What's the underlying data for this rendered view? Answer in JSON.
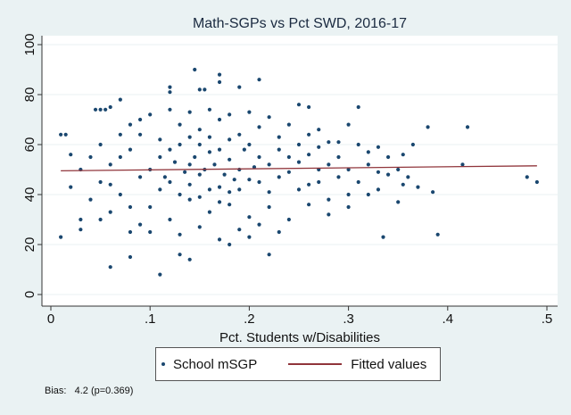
{
  "chart_data": {
    "type": "scatter",
    "title": "Math-SGPs vs Pct SWD, 2016-17",
    "xlabel": "Pct. Students w/Disabilities",
    "ylabel": "",
    "xlim": [
      0,
      0.5
    ],
    "ylim": [
      0,
      100
    ],
    "xticks": [
      0,
      0.1,
      0.2,
      0.3,
      0.4,
      0.5
    ],
    "xtick_labels": [
      "0",
      ".1",
      ".2",
      ".3",
      ".4",
      ".5"
    ],
    "yticks": [
      0,
      20,
      40,
      60,
      80,
      100
    ],
    "ytick_labels": [
      "0",
      "20",
      "40",
      "60",
      "80",
      "100"
    ],
    "grid": "horizontal",
    "legend": {
      "placement": "bottom",
      "entries": [
        "School mSGP",
        "Fitted values"
      ]
    },
    "colors": {
      "points": "#1a476f",
      "fit": "#90353b"
    },
    "series": [
      {
        "name": "School mSGP",
        "type": "scatter",
        "points": [
          [
            0.49,
            45
          ],
          [
            0.48,
            47
          ],
          [
            0.42,
            67
          ],
          [
            0.415,
            52
          ],
          [
            0.38,
            67
          ],
          [
            0.39,
            24
          ],
          [
            0.37,
            43
          ],
          [
            0.385,
            41
          ],
          [
            0.365,
            60
          ],
          [
            0.355,
            56
          ],
          [
            0.355,
            44
          ],
          [
            0.35,
            37
          ],
          [
            0.335,
            23
          ],
          [
            0.33,
            49
          ],
          [
            0.32,
            57
          ],
          [
            0.31,
            75
          ],
          [
            0.33,
            59
          ],
          [
            0.3,
            68
          ],
          [
            0.29,
            61
          ],
          [
            0.28,
            61
          ],
          [
            0.06,
            11
          ],
          [
            0.11,
            8
          ],
          [
            0.13,
            16
          ],
          [
            0.14,
            14
          ],
          [
            0.21,
            86
          ],
          [
            0.145,
            90
          ],
          [
            0.17,
            88
          ],
          [
            0.17,
            85
          ],
          [
            0.12,
            83
          ],
          [
            0.12,
            81
          ],
          [
            0.01,
            23
          ],
          [
            0.01,
            64
          ],
          [
            0.015,
            64
          ],
          [
            0.02,
            56
          ],
          [
            0.03,
            30
          ],
          [
            0.03,
            26
          ],
          [
            0.05,
            74
          ],
          [
            0.045,
            74
          ],
          [
            0.055,
            74
          ],
          [
            0.06,
            75
          ],
          [
            0.07,
            78
          ],
          [
            0.08,
            25
          ],
          [
            0.08,
            15
          ],
          [
            0.18,
            20
          ],
          [
            0.2,
            23
          ],
          [
            0.22,
            16
          ],
          [
            0.3,
            35
          ],
          [
            0.3,
            40
          ],
          [
            0.26,
            75
          ],
          [
            0.25,
            76
          ],
          [
            0.19,
            83
          ],
          [
            0.155,
            82
          ],
          [
            0.15,
            82
          ],
          [
            0.1,
            50
          ],
          [
            0.11,
            55
          ],
          [
            0.12,
            45
          ],
          [
            0.13,
            60
          ],
          [
            0.14,
            52
          ],
          [
            0.15,
            48
          ],
          [
            0.16,
            57
          ],
          [
            0.17,
            43
          ],
          [
            0.18,
            62
          ],
          [
            0.19,
            50
          ],
          [
            0.2,
            46
          ],
          [
            0.21,
            55
          ],
          [
            0.22,
            41
          ],
          [
            0.23,
            58
          ],
          [
            0.24,
            49
          ],
          [
            0.25,
            53
          ],
          [
            0.26,
            44
          ],
          [
            0.27,
            50
          ],
          [
            0.28,
            38
          ],
          [
            0.29,
            47
          ],
          [
            0.1,
            35
          ],
          [
            0.11,
            62
          ],
          [
            0.12,
            30
          ],
          [
            0.13,
            68
          ],
          [
            0.14,
            38
          ],
          [
            0.15,
            66
          ],
          [
            0.16,
            33
          ],
          [
            0.17,
            70
          ],
          [
            0.18,
            36
          ],
          [
            0.19,
            64
          ],
          [
            0.2,
            31
          ],
          [
            0.21,
            67
          ],
          [
            0.22,
            35
          ],
          [
            0.23,
            63
          ],
          [
            0.24,
            30
          ],
          [
            0.25,
            60
          ],
          [
            0.26,
            36
          ],
          [
            0.27,
            59
          ],
          [
            0.28,
            32
          ],
          [
            0.29,
            55
          ],
          [
            0.05,
            45
          ],
          [
            0.06,
            52
          ],
          [
            0.07,
            40
          ],
          [
            0.08,
            58
          ],
          [
            0.09,
            47
          ],
          [
            0.04,
            38
          ],
          [
            0.03,
            50
          ],
          [
            0.02,
            43
          ],
          [
            0.05,
            60
          ],
          [
            0.07,
            55
          ],
          [
            0.08,
            35
          ],
          [
            0.09,
            64
          ],
          [
            0.06,
            33
          ],
          [
            0.04,
            55
          ],
          [
            0.09,
            28
          ],
          [
            0.1,
            72
          ],
          [
            0.1,
            25
          ],
          [
            0.12,
            74
          ],
          [
            0.13,
            24
          ],
          [
            0.14,
            73
          ],
          [
            0.15,
            27
          ],
          [
            0.16,
            74
          ],
          [
            0.17,
            22
          ],
          [
            0.18,
            72
          ],
          [
            0.19,
            26
          ],
          [
            0.2,
            73
          ],
          [
            0.21,
            28
          ],
          [
            0.22,
            71
          ],
          [
            0.23,
            25
          ],
          [
            0.24,
            68
          ],
          [
            0.155,
            50
          ],
          [
            0.165,
            52
          ],
          [
            0.175,
            48
          ],
          [
            0.145,
            55
          ],
          [
            0.185,
            46
          ],
          [
            0.135,
            49
          ],
          [
            0.195,
            58
          ],
          [
            0.125,
            53
          ],
          [
            0.205,
            51
          ],
          [
            0.115,
            47
          ],
          [
            0.16,
            42
          ],
          [
            0.17,
            58
          ],
          [
            0.15,
            60
          ],
          [
            0.14,
            44
          ],
          [
            0.18,
            54
          ],
          [
            0.13,
            40
          ],
          [
            0.19,
            42
          ],
          [
            0.12,
            58
          ],
          [
            0.2,
            60
          ],
          [
            0.11,
            42
          ],
          [
            0.21,
            45
          ],
          [
            0.22,
            52
          ],
          [
            0.23,
            47
          ],
          [
            0.24,
            55
          ],
          [
            0.25,
            42
          ],
          [
            0.26,
            56
          ],
          [
            0.27,
            45
          ],
          [
            0.28,
            52
          ],
          [
            0.3,
            50
          ],
          [
            0.31,
            45
          ],
          [
            0.32,
            52
          ],
          [
            0.33,
            42
          ],
          [
            0.34,
            48
          ],
          [
            0.31,
            60
          ],
          [
            0.32,
            40
          ],
          [
            0.35,
            50
          ],
          [
            0.36,
            47
          ],
          [
            0.34,
            55
          ],
          [
            0.27,
            66
          ],
          [
            0.26,
            64
          ],
          [
            0.08,
            68
          ],
          [
            0.09,
            70
          ],
          [
            0.07,
            64
          ],
          [
            0.06,
            44
          ],
          [
            0.05,
            30
          ],
          [
            0.15,
            39
          ],
          [
            0.16,
            63
          ],
          [
            0.17,
            37
          ],
          [
            0.14,
            63
          ],
          [
            0.18,
            41
          ]
        ]
      },
      {
        "name": "Fitted values",
        "type": "line",
        "points": [
          [
            0.01,
            49.5
          ],
          [
            0.49,
            51.5
          ]
        ]
      }
    ],
    "annotations": [
      "Bias:   4.2 (p=0.369)"
    ]
  }
}
